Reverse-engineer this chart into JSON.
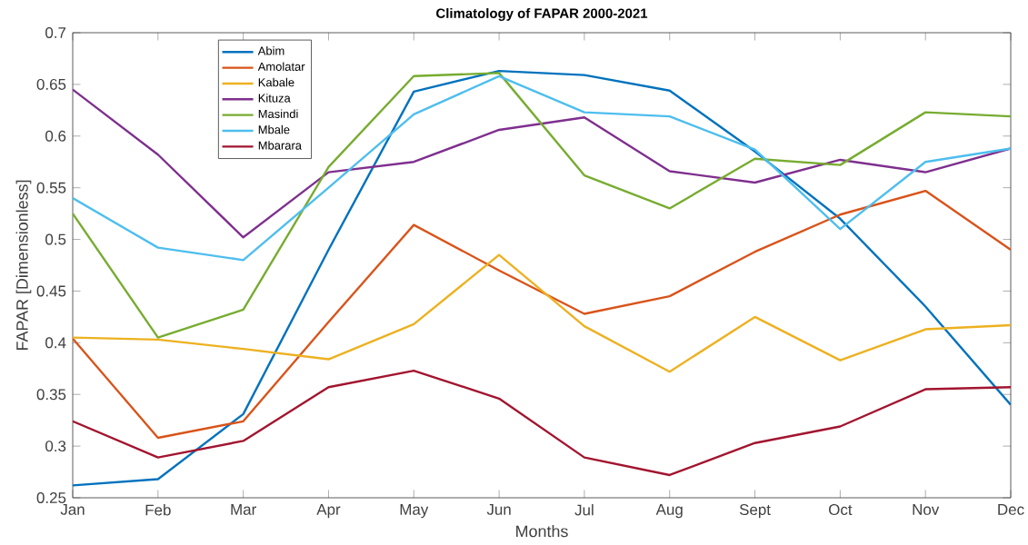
{
  "chart_data": {
    "type": "line",
    "title": "Climatology of FAPAR 2000-2021",
    "xlabel": "Months",
    "ylabel": "FAPAR [Dimensionless]",
    "categories": [
      "Jan",
      "Feb",
      "Mar",
      "Apr",
      "May",
      "Jun",
      "Jul",
      "Aug",
      "Sept",
      "Oct",
      "Nov",
      "Dec"
    ],
    "ylim": [
      0.25,
      0.7
    ],
    "yticks": [
      0.25,
      0.3,
      0.35,
      0.4,
      0.45,
      0.5,
      0.55,
      0.6,
      0.65,
      0.7
    ],
    "legend": "top left",
    "grid": false,
    "marker": "none",
    "line_style": "solid",
    "series": [
      {
        "name": "Abim",
        "color": "#0072bd",
        "values": [
          0.262,
          0.268,
          0.331,
          0.49,
          0.643,
          0.663,
          0.659,
          0.644,
          0.585,
          0.52,
          0.435,
          0.34
        ]
      },
      {
        "name": "Amolatar",
        "color": "#d95319",
        "values": [
          0.404,
          0.308,
          0.324,
          0.42,
          0.514,
          0.47,
          0.428,
          0.445,
          0.488,
          0.524,
          0.547,
          0.49
        ]
      },
      {
        "name": "Kabale",
        "color": "#edb120",
        "values": [
          0.405,
          0.403,
          0.394,
          0.384,
          0.418,
          0.485,
          0.416,
          0.372,
          0.425,
          0.383,
          0.413,
          0.417
        ]
      },
      {
        "name": "Kituza",
        "color": "#7e2f8e",
        "values": [
          0.645,
          0.582,
          0.502,
          0.565,
          0.575,
          0.606,
          0.618,
          0.566,
          0.555,
          0.577,
          0.565,
          0.588
        ]
      },
      {
        "name": "Masindi",
        "color": "#77ac30",
        "values": [
          0.525,
          0.405,
          0.432,
          0.57,
          0.658,
          0.661,
          0.562,
          0.53,
          0.578,
          0.572,
          0.623,
          0.619
        ]
      },
      {
        "name": "Mbale",
        "color": "#4dbeee",
        "values": [
          0.54,
          0.492,
          0.48,
          0.55,
          0.621,
          0.658,
          0.623,
          0.619,
          0.587,
          0.51,
          0.575,
          0.588
        ]
      },
      {
        "name": "Mbarara",
        "color": "#a2142f",
        "values": [
          0.324,
          0.289,
          0.305,
          0.357,
          0.373,
          0.346,
          0.289,
          0.272,
          0.303,
          0.319,
          0.355,
          0.357
        ]
      }
    ]
  }
}
